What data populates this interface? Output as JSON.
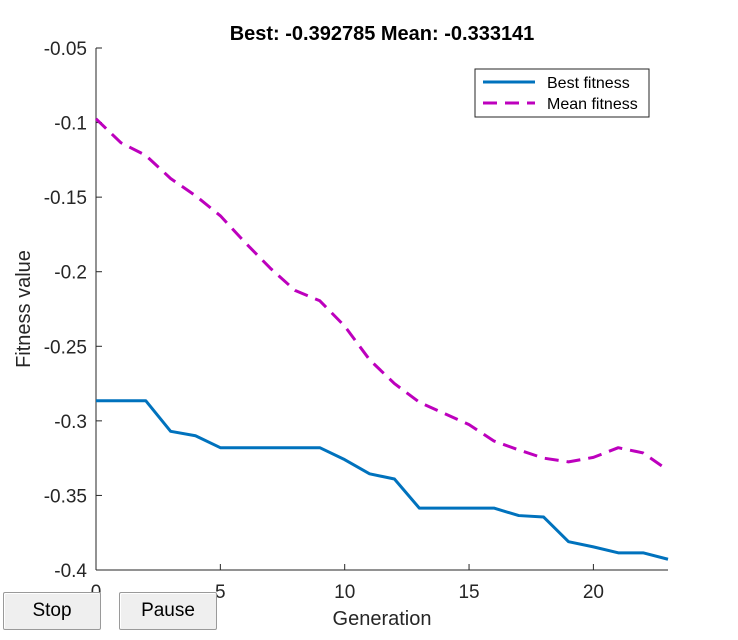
{
  "chart_data": {
    "type": "line",
    "title": "Best: -0.392785 Mean: -0.333141",
    "xlabel": "Generation",
    "ylabel": "Fitness value",
    "xlim": [
      0,
      23
    ],
    "ylim": [
      -0.4,
      -0.05
    ],
    "xticks": [
      0,
      5,
      10,
      15,
      20
    ],
    "yticks": [
      -0.05,
      -0.1,
      -0.15,
      -0.2,
      -0.25,
      -0.3,
      -0.35,
      -0.4
    ],
    "grid": false,
    "legend_position": "top-right",
    "x": [
      0,
      1,
      2,
      3,
      4,
      5,
      6,
      7,
      8,
      9,
      10,
      11,
      12,
      13,
      14,
      15,
      16,
      17,
      18,
      19,
      20,
      21,
      22,
      23
    ],
    "series": [
      {
        "name": "Best fitness",
        "style": "solid",
        "color": "#0072BD",
        "values": [
          -0.2865,
          -0.2865,
          -0.2865,
          -0.307,
          -0.31,
          -0.318,
          -0.318,
          -0.318,
          -0.318,
          -0.318,
          -0.326,
          -0.3355,
          -0.339,
          -0.3585,
          -0.3585,
          -0.3585,
          -0.3585,
          -0.3635,
          -0.3645,
          -0.381,
          -0.3845,
          -0.3885,
          -0.3885,
          -0.3928
        ]
      },
      {
        "name": "Mean fitness",
        "style": "dashed",
        "color": "#BD00BD",
        "values": [
          -0.0975,
          -0.1135,
          -0.122,
          -0.1375,
          -0.149,
          -0.1625,
          -0.1805,
          -0.1975,
          -0.2125,
          -0.2195,
          -0.2365,
          -0.259,
          -0.275,
          -0.2875,
          -0.295,
          -0.3025,
          -0.3135,
          -0.3195,
          -0.325,
          -0.3275,
          -0.3245,
          -0.318,
          -0.3215,
          -0.3331
        ]
      }
    ]
  },
  "controls": {
    "stop_label": "Stop",
    "pause_label": "Pause"
  }
}
